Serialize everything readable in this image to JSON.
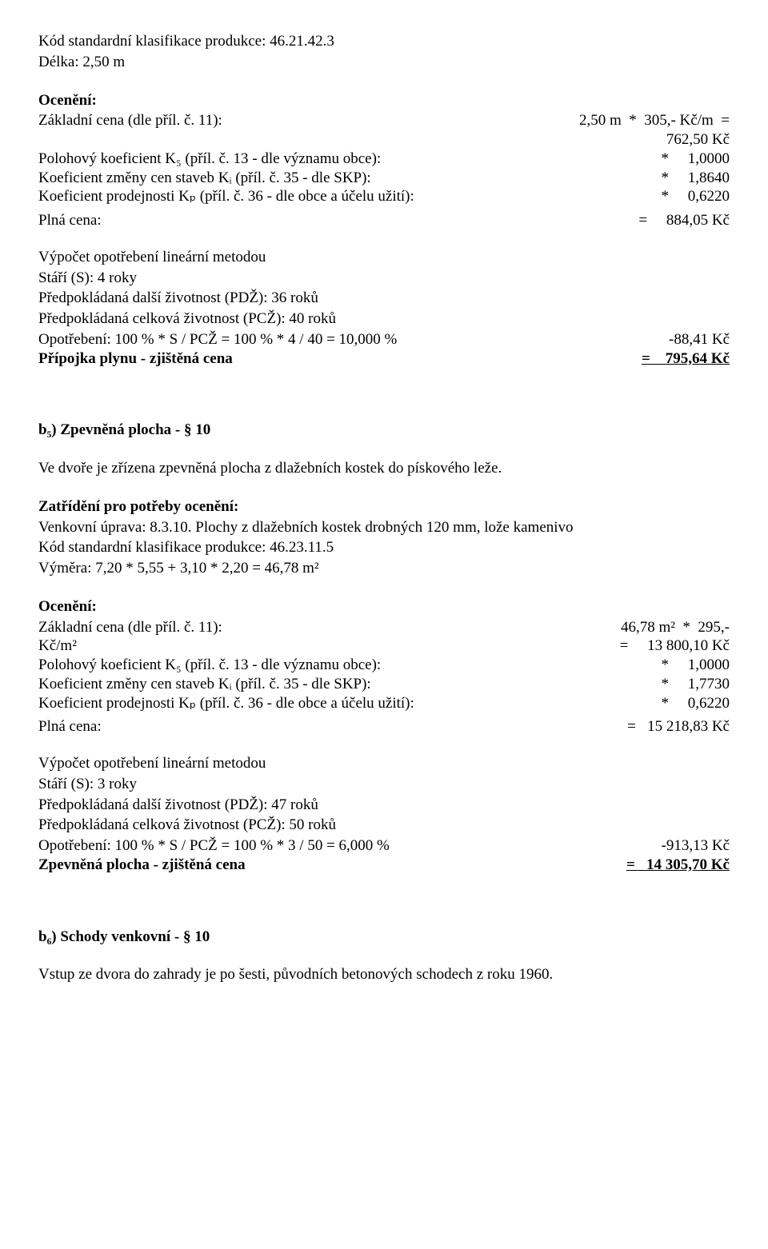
{
  "sec1": {
    "kod": "Kód standardní klasifikace produkce: 46.21.42.3",
    "delka": "Délka:  2,50 m",
    "oceneni_hdr": "Ocenění:",
    "r1_left": "Základní cena (dle příl. č. 11):",
    "r1_right": "2,50 m  *  305,- Kč/m  =",
    "r1b_right": "762,50 Kč",
    "r2_left": "Polohový koeficient K₅ (příl. č. 13 - dle významu obce):",
    "r2_right": "*     1,0000",
    "r3_left": "Koeficient změny cen staveb Kᵢ (příl. č. 35 - dle SKP):",
    "r3_right": "*     1,8640",
    "r4_left": "Koeficient prodejnosti Kₚ (příl. č. 36 - dle obce a účelu užití):",
    "r4_right": "*     0,6220",
    "r5_left": "Plná cena:",
    "r5_right": "=     884,05 Kč",
    "wear_hdr": "Výpočet opotřebení lineární metodou",
    "wear_l1": "Stáří (S): 4 roky",
    "wear_l2": "Předpokládaná další životnost (PDŽ): 36 roků",
    "wear_l3": "Předpokládaná celková životnost (PCŽ): 40 roků",
    "wear_l4_left": "Opotřebení: 100 % * S / PCŽ = 100 % * 4 / 40 = 10,000 %",
    "wear_l4_right": "-88,41 Kč",
    "final_left": "Přípojka plynu - zjištěná cena",
    "final_right": "=    795,64 Kč"
  },
  "sec2": {
    "title": "b₅) Zpevněná plocha - § 10",
    "intro": "Ve dvoře je zřízena zpevněná plocha z dlažebních kostek do pískového leže.",
    "zatrideni_hdr": "Zatřídění pro potřeby ocenění:",
    "z_l1": "Venkovní úprava: 8.3.10. Plochy z dlažebních kostek drobných 120 mm, lože kamenivo",
    "z_l2": "Kód standardní klasifikace produkce: 46.23.11.5",
    "z_l3": "Výměra:  7,20 * 5,55 + 3,10 * 2,20  =  46,78 m²",
    "oceneni_hdr": "Ocenění:",
    "r1_left": "Základní cena (dle příl. č. 11):",
    "r1_right": "46,78 m²  *  295,-",
    "r1b_left": "Kč/m²",
    "r1b_right": "=     13 800,10 Kč",
    "r2_left": "Polohový koeficient K₅ (příl. č. 13 - dle významu obce):",
    "r2_right": "*     1,0000",
    "r3_left": "Koeficient změny cen staveb Kᵢ (příl. č. 35 - dle SKP):",
    "r3_right": "*     1,7730",
    "r4_left": "Koeficient prodejnosti Kₚ (příl. č. 36 - dle obce a účelu užití):",
    "r4_right": "*     0,6220",
    "r5_left": "Plná cena:",
    "r5_right": "=   15 218,83 Kč",
    "wear_hdr": "Výpočet opotřebení lineární metodou",
    "wear_l1": "Stáří (S): 3 roky",
    "wear_l2": "Předpokládaná další životnost (PDŽ): 47 roků",
    "wear_l3": "Předpokládaná celková životnost (PCŽ): 50 roků",
    "wear_l4_left": "Opotřebení: 100 % * S / PCŽ = 100 % * 3 / 50 = 6,000 %",
    "wear_l4_right": "-913,13 Kč",
    "final_left": "Zpevněná plocha - zjištěná cena",
    "final_right": "=   14 305,70 Kč"
  },
  "sec3": {
    "title": "b₆) Schody venkovní - § 10",
    "intro": "Vstup ze dvora do zahrady je po šesti, původních betonových schodech z roku 1960."
  }
}
